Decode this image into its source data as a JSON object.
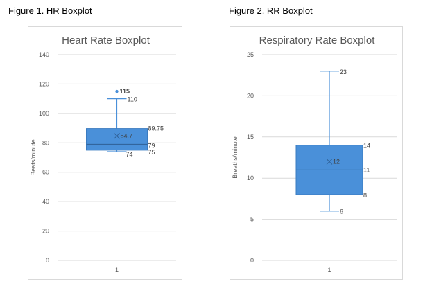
{
  "figures": [
    {
      "caption": "Figure 1. HR Boxplot"
    },
    {
      "caption": "Figure 2. RR Boxplot"
    }
  ],
  "chart_data": [
    {
      "type": "boxplot",
      "title": "Heart Rate Boxplot",
      "xlabel": "",
      "ylabel": "Beats/minute",
      "ylim": [
        0,
        140
      ],
      "yticks": [
        0,
        20,
        40,
        60,
        80,
        100,
        120,
        140
      ],
      "categories": [
        "1"
      ],
      "grid": true,
      "color": "#4a90d9",
      "box": {
        "min": 74,
        "q1": 75,
        "median": 79,
        "mean": 84.7,
        "q3": 89.75,
        "max": 110,
        "outliers": [
          115
        ]
      },
      "labels": {
        "min": "74",
        "q1": "75",
        "median": "79",
        "mean": "84.7",
        "q3": "89.75",
        "max": "110",
        "outlier": "115"
      }
    },
    {
      "type": "boxplot",
      "title": "Respiratory Rate Boxplot",
      "xlabel": "",
      "ylabel": "Breaths/minute",
      "ylim": [
        0,
        25
      ],
      "yticks": [
        0,
        5,
        10,
        15,
        20,
        25
      ],
      "categories": [
        "1"
      ],
      "grid": true,
      "color": "#4a90d9",
      "box": {
        "min": 6,
        "q1": 8,
        "median": 11,
        "mean": 12,
        "q3": 14,
        "max": 23,
        "outliers": []
      },
      "labels": {
        "min": "6",
        "q1": "8",
        "median": "11",
        "mean": "12",
        "q3": "14",
        "max": "23"
      }
    }
  ]
}
